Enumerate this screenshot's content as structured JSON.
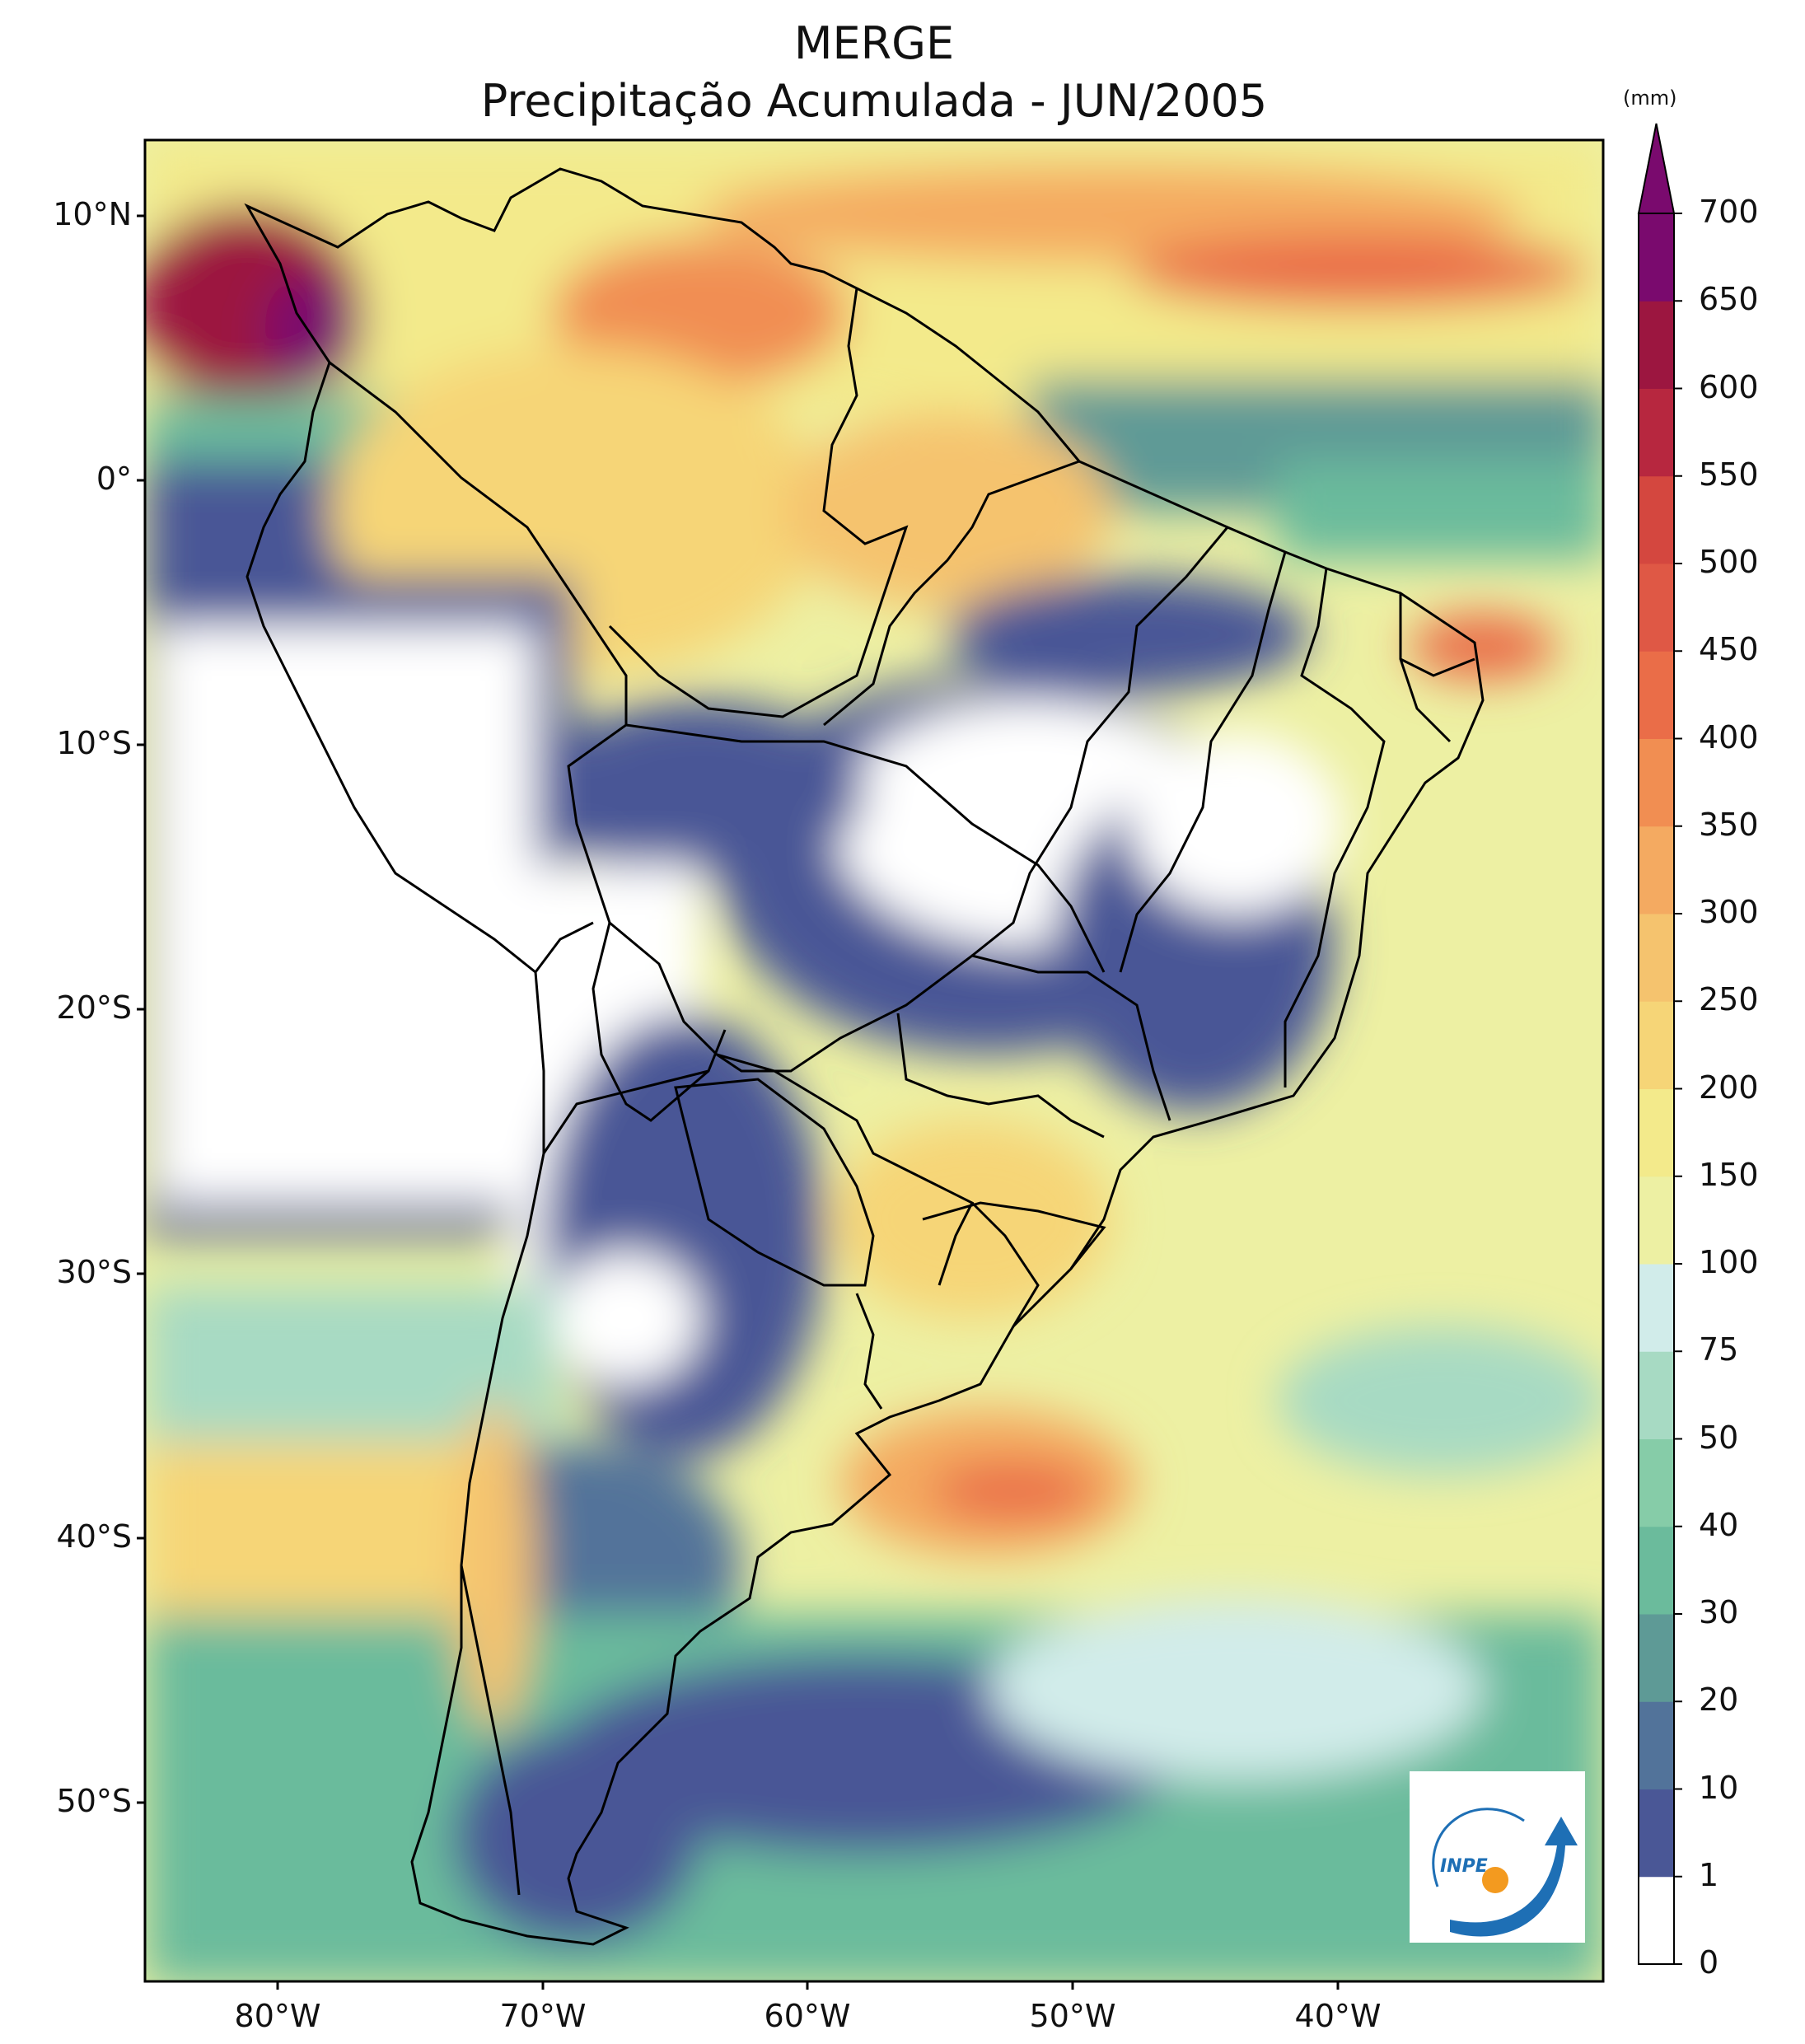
{
  "title_line1": "MERGE",
  "title_line2": "Precipitação Acumulada - JUN/2005",
  "lat_ticks": [
    "10°N",
    "0°",
    "10°S",
    "20°S",
    "30°S",
    "40°S",
    "50°S"
  ],
  "lon_ticks": [
    "80°W",
    "70°W",
    "60°W",
    "50°W",
    "40°W"
  ],
  "colorbar": {
    "unit": "(mm)",
    "levels": [
      "0",
      "1",
      "10",
      "20",
      "30",
      "40",
      "50",
      "75",
      "100",
      "150",
      "200",
      "250",
      "300",
      "350",
      "400",
      "450",
      "500",
      "550",
      "600",
      "650",
      "700"
    ],
    "colors": [
      "#ffffff",
      "#4a5796",
      "#52739a",
      "#5e9a96",
      "#6bbb9c",
      "#86cca8",
      "#a7dac3",
      "#d1ecea",
      "#edf0a3",
      "#f3ea8b",
      "#f6d577",
      "#f5c36e",
      "#f4aa61",
      "#f18e52",
      "#ea6d48",
      "#df5845",
      "#d4473f",
      "#b7273f",
      "#9c1640",
      "#7a0a6e"
    ],
    "extend_color": "#7a0a6e"
  },
  "logo": {
    "text": "INPE",
    "primary_color": "#1e6fb5",
    "accent_color": "#f39a1f"
  }
}
